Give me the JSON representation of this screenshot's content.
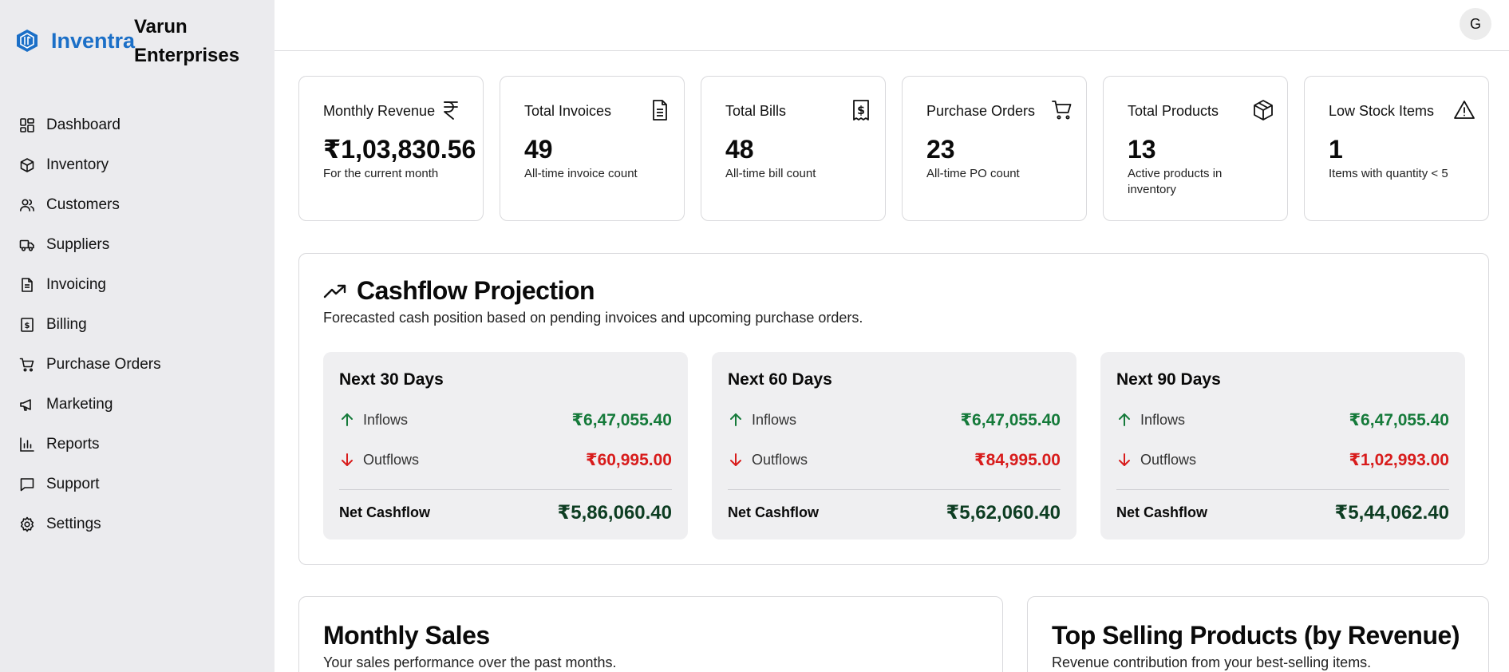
{
  "brand": {
    "name": "Inventra",
    "org_name": "Varun Enterprises",
    "accent": "#1b6fc7"
  },
  "user": {
    "avatar_initial": "G"
  },
  "sidebar": {
    "items": [
      {
        "label": "Dashboard",
        "icon": "dashboard-icon"
      },
      {
        "label": "Inventory",
        "icon": "box-icon"
      },
      {
        "label": "Customers",
        "icon": "users-icon"
      },
      {
        "label": "Suppliers",
        "icon": "truck-icon"
      },
      {
        "label": "Invoicing",
        "icon": "document-icon"
      },
      {
        "label": "Billing",
        "icon": "receipt-icon"
      },
      {
        "label": "Purchase Orders",
        "icon": "cart-icon"
      },
      {
        "label": "Marketing",
        "icon": "megaphone-icon"
      },
      {
        "label": "Reports",
        "icon": "bar-chart-icon"
      },
      {
        "label": "Support",
        "icon": "chat-icon"
      },
      {
        "label": "Settings",
        "icon": "gear-icon"
      }
    ]
  },
  "stats": [
    {
      "title": "Monthly Revenue",
      "value": "₹1,03,830.56",
      "desc": "For the current month",
      "icon": "rupee-icon"
    },
    {
      "title": "Total Invoices",
      "value": "49",
      "desc": "All-time invoice count",
      "icon": "document-icon"
    },
    {
      "title": "Total Bills",
      "value": "48",
      "desc": "All-time bill count",
      "icon": "receipt-icon"
    },
    {
      "title": "Purchase Orders",
      "value": "23",
      "desc": "All-time PO count",
      "icon": "cart-icon"
    },
    {
      "title": "Total Products",
      "value": "13",
      "desc": "Active products in inventory",
      "icon": "box-icon"
    },
    {
      "title": "Low Stock Items",
      "value": "1",
      "desc": "Items with quantity < 5",
      "icon": "warning-icon"
    }
  ],
  "cashflow": {
    "title": "Cashflow Projection",
    "subtitle": "Forecasted cash position based on pending invoices and upcoming purchase orders.",
    "inflows_label": "Inflows",
    "outflows_label": "Outflows",
    "net_label": "Net Cashflow",
    "periods": [
      {
        "title": "Next 30 Days",
        "inflows": "₹6,47,055.40",
        "outflows": "₹60,995.00",
        "net": "₹5,86,060.40"
      },
      {
        "title": "Next 60 Days",
        "inflows": "₹6,47,055.40",
        "outflows": "₹84,995.00",
        "net": "₹5,62,060.40"
      },
      {
        "title": "Next 90 Days",
        "inflows": "₹6,47,055.40",
        "outflows": "₹1,02,993.00",
        "net": "₹5,44,062.40"
      }
    ],
    "colors": {
      "inflow": "#157a3a",
      "outflow": "#d81c1c",
      "net": "#0d3d22"
    }
  },
  "panels": {
    "monthly_sales": {
      "title": "Monthly Sales",
      "subtitle": "Your sales performance over the past months."
    },
    "top_selling": {
      "title": "Top Selling Products (by Revenue)",
      "subtitle": "Revenue contribution from your best-selling items."
    }
  }
}
